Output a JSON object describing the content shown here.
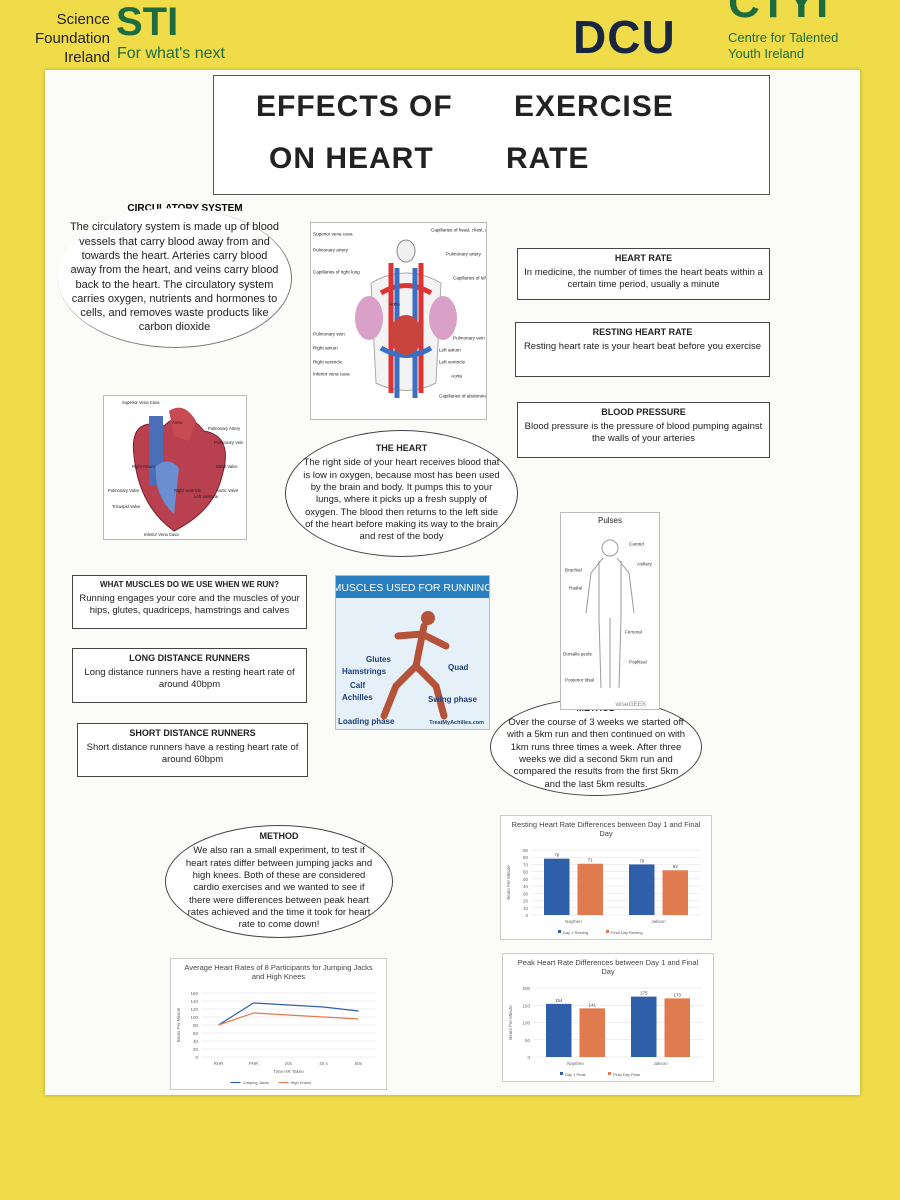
{
  "header": {
    "sfi_lines": [
      "Science",
      "Foundation",
      "Ireland"
    ],
    "sfi_logo": "STI",
    "sfi_tagline": "For what's next",
    "dcu": "DCU",
    "ctyi_logo": "CTYI",
    "ctyi_lines": [
      "Centre for Talented",
      "Youth Ireland"
    ]
  },
  "title": {
    "lines": [
      "EFFECTS OF",
      "EXERCISE",
      "ON HEART",
      "RATE"
    ]
  },
  "circulatory_system": {
    "heading": "CIRCULATORY SYSTEM",
    "text": "The circulatory system is made up of blood vessels that carry blood away from and towards the heart. Arteries carry blood away from the heart, and veins carry blood back to the heart. The circulatory system carries oxygen, nutrients and hormones to cells, and removes waste products like carbon dioxide"
  },
  "heart_rate": {
    "heading": "HEART RATE",
    "text": "In medicine, the number of times the heart beats within a certain time period, usually a minute"
  },
  "resting_heart_rate": {
    "heading": "RESTING HEART RATE",
    "text": "Resting heart rate is your heart beat before you exercise"
  },
  "blood_pressure": {
    "heading": "BLOOD PRESSURE",
    "text": "Blood pressure is the pressure of blood pumping against the walls of your arteries"
  },
  "the_heart": {
    "heading": "THE HEART",
    "text": "The right side of your heart receives blood that is low in oxygen, because most has been used by the brain and body. It pumps this to your lungs, where it picks up a fresh supply of oxygen. The blood then returns to the left side of the heart before making its way to the brain and rest of the body"
  },
  "muscles_question": {
    "heading": "WHAT MUSCLES DO WE USE WHEN WE RUN?",
    "text": "Running engages your core and the muscles of your hips, glutes, quadriceps, hamstrings and calves"
  },
  "long_distance": {
    "heading": "LONG DISTANCE RUNNERS",
    "text": "Long distance runners have a resting heart rate of around 40bpm"
  },
  "short_distance": {
    "heading": "SHORT DISTANCE RUNNERS",
    "text": "Short distance runners have a resting heart rate of around 60bpm"
  },
  "method_running": {
    "heading": "METHOD",
    "text": "Over the course of 3 weeks we started off with a 5km run and then continued on with 1km runs three times a week. After three weeks we did a second 5km run and compared the results from the first 5km and the last 5km results."
  },
  "method_experiment": {
    "heading": "METHOD",
    "text": "We also ran a small experiment, to test if heart rates differ between jumping jacks and high knees. Both of these are considered cardio exercises and we wanted to see if there were differences between peak heart rates achieved and the time it took for heart rate to come down!"
  },
  "figures": {
    "circulatory_diagram": {
      "labels": [
        "Superior vena cava",
        "Pulmonary artery",
        "Capillaries of right lung",
        "Pulmonary vein",
        "Right atrium",
        "Right ventricle",
        "Inferior vena cava",
        "Capillaries of head, chest, and arms",
        "Pulmonary artery",
        "Capillaries of left lung",
        "Aorta",
        "Pulmonary vein",
        "Left atrium",
        "Left ventricle",
        "Aorta",
        "Capillaries of abdominal region and legs"
      ]
    },
    "heart_diagram": {
      "labels": [
        "Superior Vena Cava",
        "Aorta",
        "Pulmonary Artery",
        "Pulmonary Vein",
        "Right Atrium",
        "Mitral Valve",
        "Pulmonary Valve",
        "Aortic Valve",
        "Tricuspid Valve",
        "Right Ventricle",
        "Left Ventricle",
        "Inferior Vena Cava"
      ]
    },
    "muscles_image": {
      "title": "MUSCLES USED FOR RUNNING",
      "labels": [
        "Glutes",
        "Hamstrings",
        "Calf",
        "Achilles",
        "Quad",
        "Swing phase",
        "Loading phase"
      ],
      "credit": "TreatMyAchilles.com"
    },
    "pulses_image": {
      "title": "Pulses",
      "labels": [
        "Carotid",
        "Brachial",
        "Axillary",
        "Radial",
        "Femoral",
        "Dorsalis pedis",
        "Popliteal",
        "Posterior tibial"
      ],
      "credit": "wiseGEEK"
    }
  },
  "chart_data": [
    {
      "type": "bar",
      "title": "Resting Heart Rate Differences between Day 1 and Final Day",
      "y_label": "Beats Per Minute",
      "categories": [
        "Naythen",
        "Jakson"
      ],
      "series": [
        {
          "name": "Day 1 Resting",
          "color": "#2f5fa8",
          "values": [
            78,
            70
          ]
        },
        {
          "name": "Final Day Resting",
          "color": "#e07b4f",
          "values": [
            71,
            62
          ]
        }
      ],
      "ylim": [
        0,
        90
      ],
      "yticks": [
        0,
        10,
        20,
        30,
        40,
        50,
        60,
        70,
        80,
        90
      ],
      "grid": true
    },
    {
      "type": "bar",
      "title": "Peak Heart Rate Differences between Day 1 and Final Day",
      "y_label": "Beats Per Minute",
      "categories": [
        "Naythen",
        "Jakson"
      ],
      "series": [
        {
          "name": "Day 1 Peak",
          "color": "#2f5fa8",
          "values": [
            154,
            175
          ]
        },
        {
          "name": "Final Day Peak",
          "color": "#e07b4f",
          "values": [
            141,
            170
          ]
        }
      ],
      "ylim": [
        0,
        200
      ],
      "yticks": [
        0,
        50,
        100,
        150,
        200
      ],
      "grid": true
    },
    {
      "type": "line",
      "title": "Average Heart Rates of 8 Participants for Jumping Jacks and High Knees",
      "y_label": "Beats Per Minute",
      "x_label": "Time HR Taken",
      "categories": [
        "RHR",
        "PHR",
        "20s",
        "40 s",
        "60s"
      ],
      "series": [
        {
          "name": "Jumping Jacks",
          "color": "#2f5fa8",
          "values": [
            80,
            135,
            130,
            125,
            115
          ]
        },
        {
          "name": "High Knees",
          "color": "#e07b4f",
          "values": [
            80,
            110,
            105,
            100,
            95
          ]
        }
      ],
      "ylim": [
        0,
        160
      ],
      "yticks": [
        0,
        20,
        40,
        60,
        80,
        100,
        120,
        140,
        160
      ],
      "grid": true
    }
  ]
}
